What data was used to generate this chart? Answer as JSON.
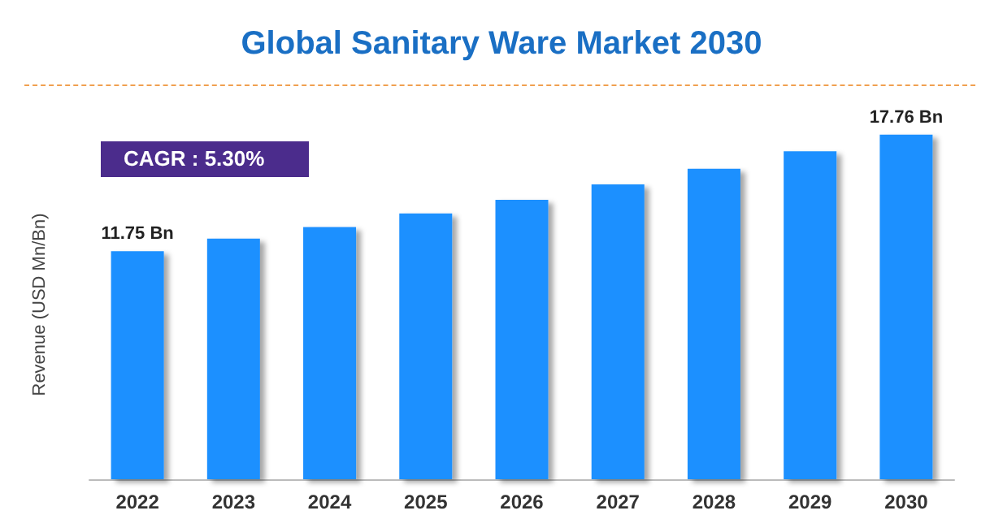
{
  "chart_data": {
    "type": "bar",
    "title": "Global Sanitary Ware Market 2030",
    "ylabel": "Revenue (USD Mn/Bn)",
    "categories": [
      "2022",
      "2023",
      "2024",
      "2025",
      "2026",
      "2027",
      "2028",
      "2029",
      "2030"
    ],
    "values": [
      11.75,
      12.4,
      13.0,
      13.7,
      14.4,
      15.2,
      16.0,
      16.9,
      17.76
    ],
    "value_labels": [
      "11.75 Bn",
      null,
      null,
      null,
      null,
      null,
      null,
      null,
      "17.76 Bn"
    ],
    "color": "#1e90ff",
    "annotations": [
      "CAGR : 5.30%"
    ],
    "tick_labels": "x",
    "grid": false
  }
}
